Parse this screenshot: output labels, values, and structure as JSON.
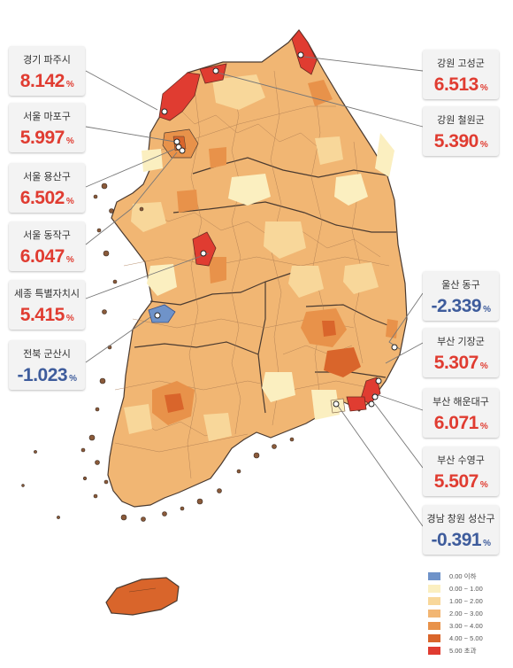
{
  "callouts": [
    {
      "region": "경기 파주시",
      "value": "8.142",
      "unit": "%",
      "color": "#e03c31"
    },
    {
      "region": "서울 마포구",
      "value": "5.997",
      "unit": "%",
      "color": "#e03c31"
    },
    {
      "region": "서울 용산구",
      "value": "6.502",
      "unit": "%",
      "color": "#e03c31"
    },
    {
      "region": "서울 동작구",
      "value": "6.047",
      "unit": "%",
      "color": "#e03c31"
    },
    {
      "region": "세종 특별자치시",
      "value": "5.415",
      "unit": "%",
      "color": "#e03c31"
    },
    {
      "region": "전북 군산시",
      "value": "-1.023",
      "unit": "%",
      "color": "#3e5c9c"
    },
    {
      "region": "강원 고성군",
      "value": "6.513",
      "unit": "%",
      "color": "#e03c31"
    },
    {
      "region": "강원 철원군",
      "value": "5.390",
      "unit": "%",
      "color": "#e03c31"
    },
    {
      "region": "울산 동구",
      "value": "-2.339",
      "unit": "%",
      "color": "#3e5c9c"
    },
    {
      "region": "부산 기장군",
      "value": "5.307",
      "unit": "%",
      "color": "#e03c31"
    },
    {
      "region": "부산 해운대구",
      "value": "6.071",
      "unit": "%",
      "color": "#e03c31"
    },
    {
      "region": "부산 수영구",
      "value": "5.507",
      "unit": "%",
      "color": "#e03c31"
    },
    {
      "region": "경남 창원 성산구",
      "value": "-0.391",
      "unit": "%",
      "color": "#3e5c9c"
    }
  ],
  "legend": [
    {
      "label": "0.00 이하",
      "color": "#6f93c9"
    },
    {
      "label": "0.00 ~ 1.00",
      "color": "#fbefc0"
    },
    {
      "label": "1.00 ~ 2.00",
      "color": "#f8d79a"
    },
    {
      "label": "2.00 ~ 3.00",
      "color": "#f2b673"
    },
    {
      "label": "3.00 ~ 4.00",
      "color": "#e8924a"
    },
    {
      "label": "4.00 ~ 5.00",
      "color": "#d9652b"
    },
    {
      "label": "5.00 초과",
      "color": "#e03c31"
    }
  ]
}
